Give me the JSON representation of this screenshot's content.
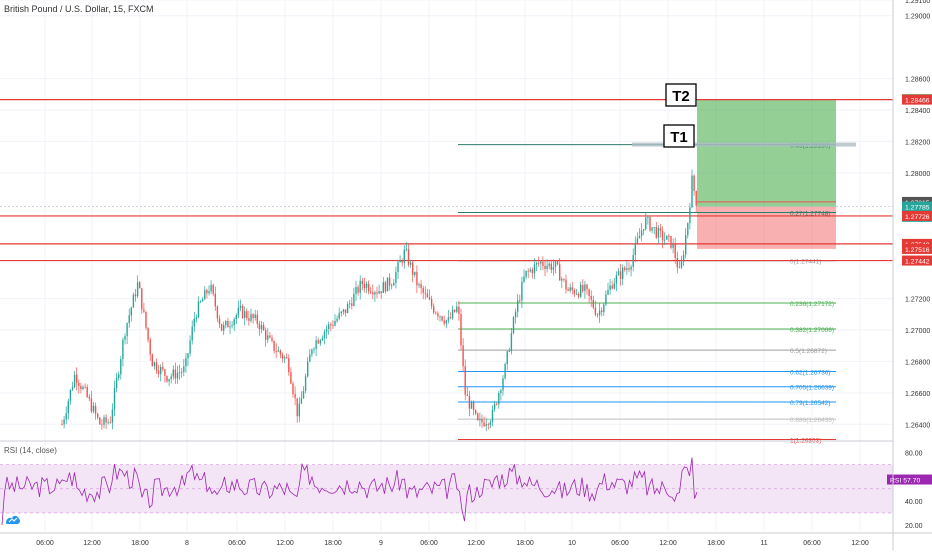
{
  "header": {
    "title": "British Pound / U.S. Dollar, 15, FXCM"
  },
  "rsi": {
    "title": "RSI (14, close)",
    "badge_label": "RSI",
    "badge_value": "57.70",
    "value": 57.7,
    "ylim": [
      15,
      88
    ],
    "ticks": [
      "80.00",
      "60.00",
      "40.00",
      "20.00"
    ],
    "band": [
      30,
      70
    ],
    "mid": 50
  },
  "targets": {
    "t1": "T1",
    "t2": "T2"
  },
  "colors": {
    "up": "#26a69a",
    "down": "#ef5350",
    "resistance": "#e53935",
    "rsi_line": "#9c27b0",
    "rsi_fill": "#f3e5f5"
  },
  "chart_data": {
    "type": "candlestick",
    "title": "British Pound / U.S. Dollar, 15, FXCM",
    "ylim": [
      1.263,
      1.291
    ],
    "y_ticks": [
      "1.29100",
      "1.29000",
      "1.28600",
      "1.28400",
      "1.28200",
      "1.28000",
      "1.27200",
      "1.27000",
      "1.26800",
      "1.26600",
      "1.26400"
    ],
    "x_ticks": [
      "06:00",
      "12:00",
      "18:00",
      "8",
      "06:00",
      "12:00",
      "18:00",
      "9",
      "06:00",
      "12:00",
      "18:00",
      "10",
      "06:00",
      "12:00",
      "18:00",
      "11",
      "06:00",
      "12:00"
    ],
    "price_tags": [
      {
        "label": "1.28469",
        "value": 1.28469,
        "color": "#4caf50"
      },
      {
        "label": "1.28466",
        "value": 1.28466,
        "color": "#e53935"
      },
      {
        "label": "1.27815",
        "value": 1.27815,
        "color": "#555555"
      },
      {
        "label": "1.27785",
        "value": 1.27785,
        "color": "#26a69a"
      },
      {
        "label": "03:01",
        "value": 1.2772,
        "color": "#26a69a"
      },
      {
        "label": "1.27726",
        "value": 1.27726,
        "color": "#e53935"
      },
      {
        "label": "1.27548",
        "value": 1.27548,
        "color": "#e53935"
      },
      {
        "label": "1.27516",
        "value": 1.27516,
        "color": "#e53935"
      },
      {
        "label": "1.27442",
        "value": 1.27442,
        "color": "#e53935"
      }
    ],
    "horizontal_levels": [
      1.28466,
      1.27726,
      1.27548,
      1.27442
    ],
    "fib_levels": [
      {
        "label": "0.65(1.28180)",
        "value": 1.2818,
        "color": "#2e7d6b"
      },
      {
        "label": "0.27(1.27748)",
        "value": 1.27748,
        "color": "#2e7d6b"
      },
      {
        "label": "0(1.27441)",
        "value": 1.27441,
        "color": "#9e9e9e"
      },
      {
        "label": "0.236(1.27172)",
        "value": 1.27172,
        "color": "#4caf50"
      },
      {
        "label": "0.382(1.27006)",
        "value": 1.27006,
        "color": "#4caf50"
      },
      {
        "label": "0.5(1.26872)",
        "value": 1.26872,
        "color": "#9e9e9e"
      },
      {
        "label": "0.62(1.26736)",
        "value": 1.26736,
        "color": "#2196f3"
      },
      {
        "label": "0.705(1.26639)",
        "value": 1.26639,
        "color": "#2196f3"
      },
      {
        "label": "0.79(1.26542)",
        "value": 1.26542,
        "color": "#2196f3"
      },
      {
        "label": "0.886(1.26433)",
        "value": 1.26433,
        "color": "#bdbdbd"
      },
      {
        "label": "1(1.26303)",
        "value": 1.26303,
        "color": "#e53935"
      }
    ],
    "position": {
      "entry": 1.27785,
      "target": 1.28469,
      "stop": 1.27516
    }
  }
}
